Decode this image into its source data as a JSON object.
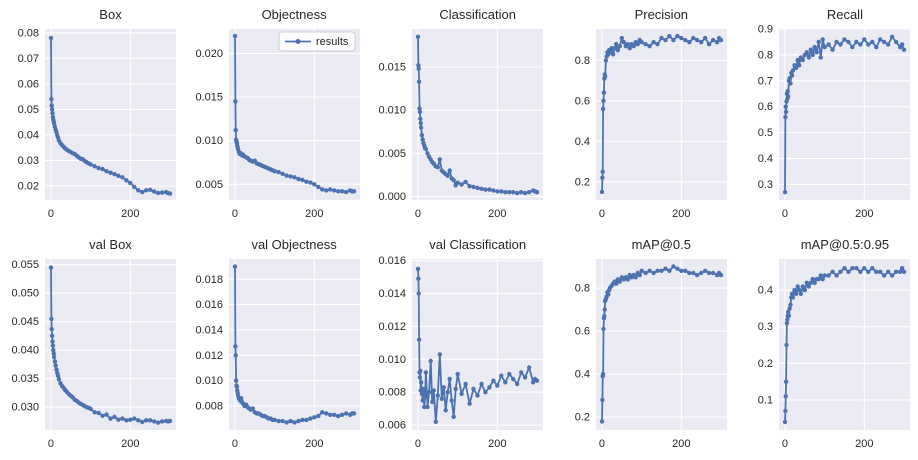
{
  "style": {
    "line_color": "#4c72b0",
    "axes_bg": "#eaeaf2",
    "grid_color": "#ffffff",
    "text_color": "#262626",
    "legend_bg": "#ffffff",
    "legend_border": "#cccccc",
    "figure_bg": "#ffffff"
  },
  "figure": {
    "rows": 2,
    "cols": 5
  },
  "epochs": [
    0,
    1,
    2,
    3,
    4,
    5,
    6,
    7,
    8,
    10,
    12,
    14,
    16,
    18,
    20,
    24,
    28,
    32,
    36,
    40,
    45,
    50,
    55,
    60,
    65,
    70,
    75,
    80,
    85,
    90,
    95,
    100,
    110,
    120,
    130,
    140,
    150,
    160,
    170,
    180,
    190,
    200,
    210,
    220,
    230,
    240,
    250,
    260,
    270,
    280,
    290,
    295,
    300
  ],
  "chart_data": [
    {
      "type": "line",
      "title": "Box",
      "xlabel": "",
      "ylabel": "",
      "xlim": [
        -15,
        315
      ],
      "ylim": [
        0.0145,
        0.0815
      ],
      "xticks": [
        {
          "v": 0,
          "label": "0"
        },
        {
          "v": 200,
          "label": "200"
        }
      ],
      "yticks": [
        {
          "v": 0.02,
          "label": "0.02"
        },
        {
          "v": 0.03,
          "label": "0.03"
        },
        {
          "v": 0.04,
          "label": "0.04"
        },
        {
          "v": 0.05,
          "label": "0.05"
        },
        {
          "v": 0.06,
          "label": "0.06"
        },
        {
          "v": 0.07,
          "label": "0.07"
        },
        {
          "v": 0.08,
          "label": "0.08"
        }
      ],
      "y": [
        0.078,
        0.054,
        0.0515,
        0.05,
        0.0485,
        0.047,
        0.046,
        0.0452,
        0.0445,
        0.0432,
        0.042,
        0.041,
        0.0398,
        0.039,
        0.0378,
        0.0368,
        0.036,
        0.0353,
        0.0347,
        0.0342,
        0.0337,
        0.0333,
        0.0328,
        0.0325,
        0.0318,
        0.0312,
        0.0307,
        0.0305,
        0.0298,
        0.0293,
        0.0288,
        0.0284,
        0.0277,
        0.027,
        0.0266,
        0.0258,
        0.0252,
        0.0246,
        0.024,
        0.0234,
        0.0222,
        0.0212,
        0.0196,
        0.0183,
        0.0176,
        0.0183,
        0.0185,
        0.0178,
        0.0173,
        0.0174,
        0.0176,
        0.0172,
        0.017
      ]
    },
    {
      "type": "line",
      "title": "Objectness",
      "xlabel": "",
      "ylabel": "",
      "xlim": [
        -15,
        315
      ],
      "ylim": [
        0.0032,
        0.0228
      ],
      "xticks": [
        {
          "v": 0,
          "label": "0"
        },
        {
          "v": 200,
          "label": "200"
        }
      ],
      "yticks": [
        {
          "v": 0.005,
          "label": "0.005"
        },
        {
          "v": 0.01,
          "label": "0.010"
        },
        {
          "v": 0.015,
          "label": "0.015"
        },
        {
          "v": 0.02,
          "label": "0.020"
        }
      ],
      "legend": {
        "label": "results",
        "loc": "upper right"
      },
      "y": [
        0.022,
        0.0145,
        0.0112,
        0.0101,
        0.0099,
        0.0097,
        0.0094,
        0.0092,
        0.009,
        0.0087,
        0.0085,
        0.0086,
        0.0084,
        0.0083,
        0.0084,
        0.0082,
        0.0081,
        0.008,
        0.0078,
        0.0077,
        0.0076,
        0.0077,
        0.0074,
        0.0073,
        0.0072,
        0.0071,
        0.007,
        0.0069,
        0.0068,
        0.0067,
        0.0066,
        0.0065,
        0.0064,
        0.0062,
        0.006,
        0.0059,
        0.0058,
        0.0056,
        0.0055,
        0.0053,
        0.0052,
        0.005,
        0.0047,
        0.0044,
        0.0043,
        0.0044,
        0.0043,
        0.0042,
        0.0042,
        0.0041,
        0.0043,
        0.0042,
        0.0042
      ]
    },
    {
      "type": "line",
      "title": "Classification",
      "xlabel": "",
      "ylabel": "",
      "xlim": [
        -15,
        315
      ],
      "ylim": [
        -0.0004,
        0.0194
      ],
      "xticks": [
        {
          "v": 0,
          "label": "0"
        },
        {
          "v": 200,
          "label": "200"
        }
      ],
      "yticks": [
        {
          "v": 0.0,
          "label": "0.000"
        },
        {
          "v": 0.005,
          "label": "0.005"
        },
        {
          "v": 0.01,
          "label": "0.010"
        },
        {
          "v": 0.015,
          "label": "0.015"
        }
      ],
      "y": [
        0.0185,
        0.0152,
        0.0148,
        0.0133,
        0.0102,
        0.0098,
        0.009,
        0.0085,
        0.008,
        0.0071,
        0.0066,
        0.0062,
        0.0059,
        0.0056,
        0.0055,
        0.005,
        0.0046,
        0.0043,
        0.004,
        0.0038,
        0.0035,
        0.0034,
        0.0043,
        0.003,
        0.0028,
        0.0026,
        0.0024,
        0.003,
        0.0021,
        0.0019,
        0.0013,
        0.0016,
        0.0014,
        0.0017,
        0.0012,
        0.0011,
        0.001,
        0.0009,
        0.0008,
        0.0008,
        0.0007,
        0.0006,
        0.0006,
        0.0005,
        0.0005,
        0.0005,
        0.0004,
        0.0005,
        0.0004,
        0.0005,
        0.0007,
        0.0006,
        0.0005
      ]
    },
    {
      "type": "line",
      "title": "Precision",
      "xlabel": "",
      "ylabel": "",
      "xlim": [
        -15,
        315
      ],
      "ylim": [
        0.11,
        0.955
      ],
      "xticks": [
        {
          "v": 0,
          "label": "0"
        },
        {
          "v": 200,
          "label": "200"
        }
      ],
      "yticks": [
        {
          "v": 0.2,
          "label": "0.2"
        },
        {
          "v": 0.4,
          "label": "0.4"
        },
        {
          "v": 0.6,
          "label": "0.6"
        },
        {
          "v": 0.8,
          "label": "0.8"
        }
      ],
      "y": [
        0.15,
        0.22,
        0.25,
        0.56,
        0.6,
        0.64,
        0.71,
        0.73,
        0.72,
        0.8,
        0.82,
        0.84,
        0.83,
        0.85,
        0.84,
        0.86,
        0.83,
        0.86,
        0.88,
        0.85,
        0.87,
        0.91,
        0.89,
        0.87,
        0.88,
        0.86,
        0.88,
        0.87,
        0.89,
        0.88,
        0.9,
        0.89,
        0.88,
        0.87,
        0.89,
        0.88,
        0.91,
        0.9,
        0.92,
        0.9,
        0.92,
        0.91,
        0.9,
        0.89,
        0.91,
        0.9,
        0.89,
        0.91,
        0.88,
        0.9,
        0.89,
        0.91,
        0.9
      ]
    },
    {
      "type": "line",
      "title": "Recall",
      "xlabel": "",
      "ylabel": "",
      "xlim": [
        -15,
        315
      ],
      "ylim": [
        0.24,
        0.9
      ],
      "xticks": [
        {
          "v": 0,
          "label": "0"
        },
        {
          "v": 200,
          "label": "200"
        }
      ],
      "yticks": [
        {
          "v": 0.3,
          "label": "0.3"
        },
        {
          "v": 0.4,
          "label": "0.4"
        },
        {
          "v": 0.5,
          "label": "0.5"
        },
        {
          "v": 0.6,
          "label": "0.6"
        },
        {
          "v": 0.7,
          "label": "0.7"
        },
        {
          "v": 0.8,
          "label": "0.8"
        },
        {
          "v": 0.9,
          "label": "0.9"
        }
      ],
      "y": [
        0.27,
        0.56,
        0.6,
        0.58,
        0.62,
        0.65,
        0.63,
        0.66,
        0.64,
        0.7,
        0.71,
        0.69,
        0.73,
        0.72,
        0.74,
        0.76,
        0.75,
        0.78,
        0.76,
        0.79,
        0.78,
        0.8,
        0.81,
        0.79,
        0.82,
        0.8,
        0.83,
        0.81,
        0.85,
        0.79,
        0.86,
        0.83,
        0.84,
        0.82,
        0.85,
        0.84,
        0.86,
        0.85,
        0.83,
        0.85,
        0.84,
        0.86,
        0.84,
        0.85,
        0.83,
        0.86,
        0.85,
        0.84,
        0.87,
        0.85,
        0.83,
        0.84,
        0.82
      ]
    },
    {
      "type": "line",
      "title": "val Box",
      "xlabel": "",
      "ylabel": "",
      "xlim": [
        -15,
        315
      ],
      "ylim": [
        0.026,
        0.056
      ],
      "xticks": [
        {
          "v": 0,
          "label": "0"
        },
        {
          "v": 200,
          "label": "200"
        }
      ],
      "yticks": [
        {
          "v": 0.03,
          "label": "0.030"
        },
        {
          "v": 0.035,
          "label": "0.035"
        },
        {
          "v": 0.04,
          "label": "0.040"
        },
        {
          "v": 0.045,
          "label": "0.045"
        },
        {
          "v": 0.05,
          "label": "0.050"
        },
        {
          "v": 0.055,
          "label": "0.055"
        }
      ],
      "y": [
        0.0545,
        0.0455,
        0.0437,
        0.0425,
        0.0415,
        0.0408,
        0.04,
        0.0394,
        0.0388,
        0.038,
        0.0373,
        0.0366,
        0.036,
        0.0355,
        0.0349,
        0.0342,
        0.0337,
        0.0334,
        0.033,
        0.0327,
        0.0323,
        0.032,
        0.0317,
        0.0313,
        0.0311,
        0.0308,
        0.0306,
        0.0304,
        0.0302,
        0.03,
        0.0299,
        0.0297,
        0.0291,
        0.029,
        0.0285,
        0.0287,
        0.028,
        0.0283,
        0.0278,
        0.028,
        0.0277,
        0.0278,
        0.028,
        0.0277,
        0.0274,
        0.0277,
        0.0277,
        0.0275,
        0.0273,
        0.0275,
        0.0276,
        0.0275,
        0.0276
      ]
    },
    {
      "type": "line",
      "title": "val Objectness",
      "xlabel": "",
      "ylabel": "",
      "xlim": [
        -15,
        315
      ],
      "ylim": [
        0.0061,
        0.0196
      ],
      "xticks": [
        {
          "v": 0,
          "label": "0"
        },
        {
          "v": 200,
          "label": "200"
        }
      ],
      "yticks": [
        {
          "v": 0.008,
          "label": "0.008"
        },
        {
          "v": 0.01,
          "label": "0.010"
        },
        {
          "v": 0.012,
          "label": "0.012"
        },
        {
          "v": 0.014,
          "label": "0.014"
        },
        {
          "v": 0.016,
          "label": "0.016"
        },
        {
          "v": 0.018,
          "label": "0.018"
        }
      ],
      "y": [
        0.019,
        0.0127,
        0.012,
        0.01,
        0.0096,
        0.0095,
        0.0092,
        0.009,
        0.0088,
        0.0086,
        0.0085,
        0.0084,
        0.0086,
        0.0083,
        0.0082,
        0.008,
        0.0081,
        0.0079,
        0.0078,
        0.0077,
        0.0078,
        0.0075,
        0.0074,
        0.0074,
        0.0073,
        0.0072,
        0.0072,
        0.0071,
        0.007,
        0.007,
        0.0069,
        0.0069,
        0.0068,
        0.0068,
        0.0067,
        0.0068,
        0.0067,
        0.0068,
        0.0069,
        0.0069,
        0.007,
        0.0071,
        0.0072,
        0.0075,
        0.0074,
        0.0073,
        0.0073,
        0.0072,
        0.0073,
        0.0074,
        0.0073,
        0.0074,
        0.0074
      ]
    },
    {
      "type": "line",
      "title": "val Classification",
      "xlabel": "",
      "ylabel": "",
      "xlim": [
        -15,
        315
      ],
      "ylim": [
        0.0057,
        0.0161
      ],
      "xticks": [
        {
          "v": 0,
          "label": "0"
        },
        {
          "v": 200,
          "label": "200"
        }
      ],
      "yticks": [
        {
          "v": 0.006,
          "label": "0.006"
        },
        {
          "v": 0.008,
          "label": "0.008"
        },
        {
          "v": 0.01,
          "label": "0.010"
        },
        {
          "v": 0.012,
          "label": "0.012"
        },
        {
          "v": 0.014,
          "label": "0.014"
        },
        {
          "v": 0.016,
          "label": "0.016"
        }
      ],
      "y": [
        0.0155,
        0.0149,
        0.014,
        0.0112,
        0.0092,
        0.0089,
        0.0093,
        0.0081,
        0.0086,
        0.0079,
        0.0075,
        0.0082,
        0.0071,
        0.0077,
        0.0092,
        0.0071,
        0.008,
        0.0099,
        0.0074,
        0.0081,
        0.0062,
        0.0078,
        0.0103,
        0.0076,
        0.0083,
        0.0069,
        0.008,
        0.0088,
        0.0075,
        0.0065,
        0.0082,
        0.0091,
        0.0079,
        0.0085,
        0.0073,
        0.0082,
        0.0078,
        0.0085,
        0.008,
        0.0083,
        0.0087,
        0.0084,
        0.009,
        0.0086,
        0.0091,
        0.0088,
        0.0085,
        0.0092,
        0.0089,
        0.0095,
        0.0086,
        0.0088,
        0.0087
      ]
    },
    {
      "type": "line",
      "title": "mAP@0.5",
      "xlabel": "",
      "ylabel": "",
      "xlim": [
        -15,
        315
      ],
      "ylim": [
        0.14,
        0.935
      ],
      "xticks": [
        {
          "v": 0,
          "label": "0"
        },
        {
          "v": 200,
          "label": "200"
        }
      ],
      "yticks": [
        {
          "v": 0.2,
          "label": "0.2"
        },
        {
          "v": 0.4,
          "label": "0.4"
        },
        {
          "v": 0.6,
          "label": "0.6"
        },
        {
          "v": 0.8,
          "label": "0.8"
        }
      ],
      "y": [
        0.18,
        0.28,
        0.39,
        0.4,
        0.61,
        0.66,
        0.67,
        0.7,
        0.74,
        0.75,
        0.76,
        0.78,
        0.77,
        0.79,
        0.8,
        0.81,
        0.82,
        0.83,
        0.82,
        0.84,
        0.83,
        0.85,
        0.84,
        0.85,
        0.84,
        0.86,
        0.85,
        0.86,
        0.85,
        0.87,
        0.86,
        0.88,
        0.87,
        0.88,
        0.87,
        0.88,
        0.88,
        0.89,
        0.88,
        0.9,
        0.89,
        0.88,
        0.88,
        0.87,
        0.87,
        0.86,
        0.87,
        0.88,
        0.87,
        0.87,
        0.86,
        0.87,
        0.86
      ]
    },
    {
      "type": "line",
      "title": "mAP@0.5:0.95",
      "xlabel": "",
      "ylabel": "",
      "xlim": [
        -15,
        315
      ],
      "ylim": [
        0.018,
        0.485
      ],
      "xticks": [
        {
          "v": 0,
          "label": "0"
        },
        {
          "v": 200,
          "label": "200"
        }
      ],
      "yticks": [
        {
          "v": 0.1,
          "label": "0.1"
        },
        {
          "v": 0.2,
          "label": "0.2"
        },
        {
          "v": 0.3,
          "label": "0.3"
        },
        {
          "v": 0.4,
          "label": "0.4"
        }
      ],
      "y": [
        0.04,
        0.07,
        0.11,
        0.15,
        0.25,
        0.31,
        0.32,
        0.33,
        0.34,
        0.33,
        0.35,
        0.36,
        0.38,
        0.39,
        0.38,
        0.4,
        0.39,
        0.41,
        0.4,
        0.39,
        0.41,
        0.4,
        0.42,
        0.41,
        0.42,
        0.43,
        0.42,
        0.43,
        0.43,
        0.44,
        0.43,
        0.44,
        0.44,
        0.45,
        0.44,
        0.45,
        0.46,
        0.45,
        0.46,
        0.46,
        0.45,
        0.46,
        0.45,
        0.46,
        0.45,
        0.45,
        0.44,
        0.45,
        0.44,
        0.45,
        0.45,
        0.46,
        0.45
      ]
    }
  ]
}
